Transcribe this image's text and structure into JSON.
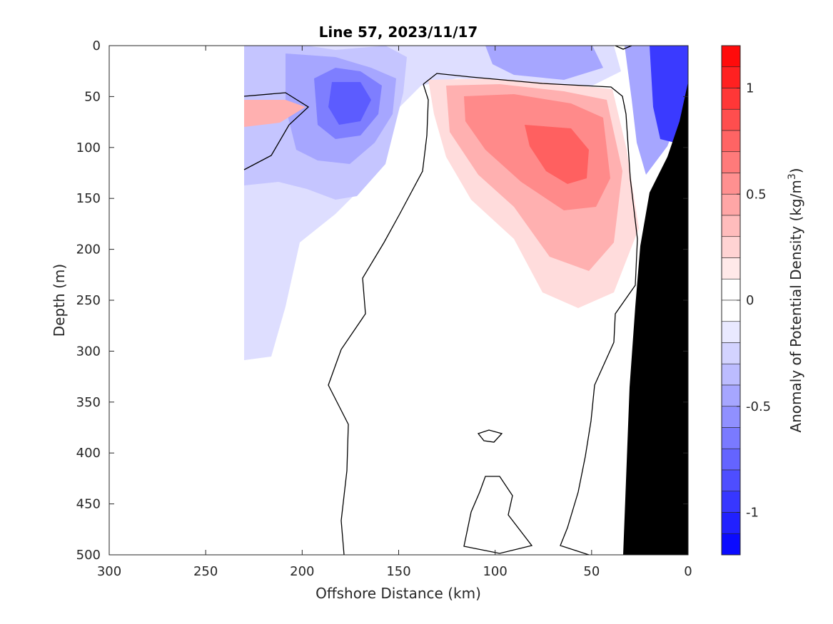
{
  "chart_data": {
    "type": "heatmap",
    "title": "Line 57, 2023/11/17",
    "xlabel": "Offshore Distance (km)",
    "ylabel": "Depth (m)",
    "colorbar_label": "Anomaly of Potential Density (kg/m",
    "colorbar_label_sup": "3",
    "colorbar_label_end": ")",
    "xlim": [
      300,
      0
    ],
    "ylim": [
      0,
      500
    ],
    "xticks": [
      "300",
      "250",
      "200",
      "150",
      "100",
      "50",
      "0"
    ],
    "yticks": [
      "0",
      "50",
      "100",
      "150",
      "200",
      "250",
      "300",
      "350",
      "400",
      "450",
      "500"
    ],
    "colorbar_range": [
      -1.2,
      1.2
    ],
    "colorbar_levels": 24,
    "colorbar_ticks": [
      "1",
      "0.5",
      "0",
      "-0.5",
      "-1"
    ],
    "positive_color": "#ff0000",
    "negative_color": "#0000ff",
    "zero_color": "#ffffff",
    "bathymetry_color": "#000000",
    "zero_contour_color": "#000000",
    "data_extent_km": [
      0,
      230
    ],
    "features": [
      {
        "name": "positive core",
        "x_km": 70,
        "depth_m": 105,
        "value": 0.75
      },
      {
        "name": "negative core",
        "x_km": 170,
        "depth_m": 80,
        "value": -0.55
      },
      {
        "name": "negative core",
        "x_km": 8,
        "depth_m": 55,
        "value": -1.0
      },
      {
        "name": "positive lens",
        "x_km": 220,
        "depth_m": 62,
        "value": 0.35
      }
    ]
  }
}
